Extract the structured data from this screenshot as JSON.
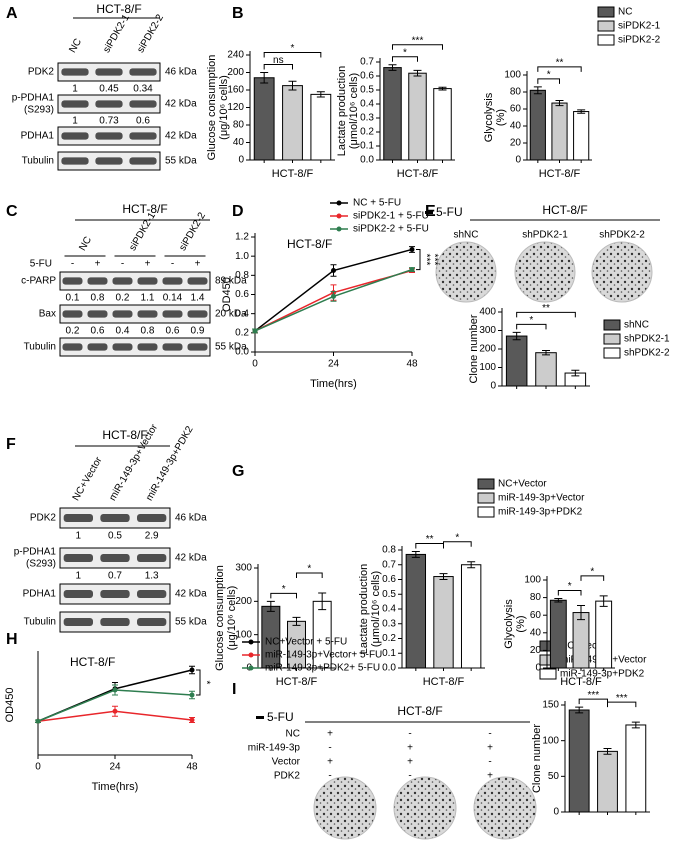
{
  "panel_letters": [
    "A",
    "B",
    "C",
    "D",
    "E",
    "F",
    "G",
    "H",
    "I"
  ],
  "blots": [
    {
      "header": "HCT-8/F",
      "lanes": [
        "NC",
        "siPDK2-1",
        "siPDK2-2"
      ],
      "rows": [
        {
          "label": [
            "PDK2"
          ],
          "kda": "46 kDa",
          "quant": [
            1,
            0.45,
            0.34
          ]
        },
        {
          "label": [
            "p-PDHA1",
            "(S293)"
          ],
          "kda": "42 kDa",
          "quant": [
            1,
            0.73,
            0.6
          ]
        },
        {
          "label": [
            "PDHA1"
          ],
          "kda": "42 kDa"
        },
        {
          "label": [
            "Tubulin"
          ],
          "kda": "55 kDa"
        }
      ]
    },
    {
      "header": "HCT-8/F",
      "groups": [
        "NC",
        "siPDK2-1",
        "siPDK2-2"
      ],
      "treatment": {
        "label": "5-FU",
        "signs": [
          "-",
          "+",
          "-",
          "+",
          "-",
          "+"
        ]
      },
      "rows": [
        {
          "label": [
            "c-PARP"
          ],
          "kda": "89 kDa",
          "quant": [
            0.1,
            0.8,
            0.2,
            1.1,
            0.14,
            1.4
          ]
        },
        {
          "label": [
            "Bax"
          ],
          "kda": "20 kDa",
          "quant": [
            0.2,
            0.6,
            0.4,
            0.8,
            0.6,
            0.9
          ]
        },
        {
          "label": [
            "Tubulin"
          ],
          "kda": "55 kDa"
        }
      ]
    },
    {
      "header": "HCT-8/F",
      "lanes": [
        "NC+Vector",
        "miR-149-3p+Vector",
        "miR-149-3p+PDK2"
      ],
      "rows": [
        {
          "label": [
            "PDK2"
          ],
          "kda": "46 kDa",
          "quant": [
            1,
            0.5,
            2.9
          ]
        },
        {
          "label": [
            "p-PDHA1",
            "(S293)"
          ],
          "kda": "42 kDa",
          "quant": [
            1,
            0.7,
            1.3
          ]
        },
        {
          "label": [
            "PDHA1"
          ],
          "kda": "42 kDa"
        },
        {
          "label": [
            "Tubulin"
          ],
          "kda": "55 kDa"
        }
      ]
    }
  ],
  "dishes_e": {
    "treatment": "5-FU",
    "header": "HCT-8/F",
    "labels": [
      "shNC",
      "shPDK2-1",
      "shPDK2-2"
    ]
  },
  "dishes_i": {
    "treatment": "5-FU",
    "header": "HCT-8/F",
    "rows": [
      {
        "label": "NC",
        "signs": [
          "+",
          "-",
          "-"
        ]
      },
      {
        "label": "miR-149-3p",
        "signs": [
          "-",
          "+",
          "+"
        ]
      },
      {
        "label": "Vector",
        "signs": [
          "+",
          "+",
          "-"
        ]
      },
      {
        "label": "PDK2",
        "signs": [
          "-",
          "-",
          "+"
        ]
      }
    ]
  },
  "legends": [
    [
      {
        "name": "NC",
        "color": "#595959"
      },
      {
        "name": "siPDK2-1",
        "color": "#cccccc"
      },
      {
        "name": "siPDK2-2",
        "color": "#ffffff"
      }
    ],
    [
      {
        "name": "shNC",
        "color": "#595959"
      },
      {
        "name": "shPDK2-1",
        "color": "#cccccc"
      },
      {
        "name": "shPDK2-2",
        "color": "#ffffff"
      }
    ],
    [
      {
        "name": "NC+Vector",
        "color": "#595959"
      },
      {
        "name": "miR-149-3p+Vector",
        "color": "#cccccc"
      },
      {
        "name": "miR-149-3p+PDK2",
        "color": "#ffffff"
      }
    ],
    [
      {
        "name": "NC+Vector",
        "color": "#595959"
      },
      {
        "name": "miR-149-3p+Vector",
        "color": "#cccccc"
      },
      {
        "name": "miR-149-3p+PDK2",
        "color": "#ffffff"
      }
    ]
  ],
  "chart_data": [
    {
      "type": "bar",
      "ylabel": [
        "Glucose consumption",
        "(μg/10⁶ cells)"
      ],
      "xlabel": "HCT-8/F",
      "categories": [
        null,
        null,
        null
      ],
      "values": [
        188,
        170,
        150
      ],
      "errors": [
        12,
        10,
        6
      ],
      "colors": [
        "#595959",
        "#cccccc",
        "#ffffff"
      ],
      "ylim": [
        0,
        240
      ],
      "yticks": [
        0,
        40,
        80,
        120,
        160,
        200,
        240
      ],
      "annotations": [
        {
          "text": "ns",
          "bars": [
            0,
            1
          ]
        },
        {
          "text": "*",
          "bars": [
            0,
            2
          ]
        }
      ]
    },
    {
      "type": "bar",
      "ylabel": [
        "Lactate production",
        "(μmol/10⁶ cells)"
      ],
      "xlabel": "HCT-8/F",
      "categories": [
        null,
        null,
        null
      ],
      "values": [
        0.66,
        0.62,
        0.51
      ],
      "errors": [
        0.02,
        0.02,
        0.01
      ],
      "colors": [
        "#595959",
        "#cccccc",
        "#ffffff"
      ],
      "ylim": [
        0,
        0.7
      ],
      "yticks": [
        {
          "value": 0,
          "label": "0.0"
        },
        0.1,
        0.2,
        0.3,
        0.4,
        0.5,
        0.6,
        0.7
      ],
      "annotations": [
        {
          "text": "*",
          "bars": [
            0,
            1
          ]
        },
        {
          "text": "***",
          "bars": [
            0,
            2
          ]
        }
      ]
    },
    {
      "type": "bar",
      "ylabel": [
        "Glycolysis",
        "(%)"
      ],
      "xlabel": "HCT-8/F",
      "categories": [
        null,
        null,
        null
      ],
      "values": [
        82,
        67,
        57
      ],
      "errors": [
        4,
        3,
        2
      ],
      "colors": [
        "#595959",
        "#cccccc",
        "#ffffff"
      ],
      "ylim": [
        0,
        100
      ],
      "yticks": [
        0,
        20,
        40,
        60,
        80,
        100
      ],
      "annotations": [
        {
          "text": "*",
          "bars": [
            0,
            1
          ]
        },
        {
          "text": "**",
          "bars": [
            0,
            2
          ]
        }
      ]
    },
    {
      "type": "line",
      "inner_title": "HCT-8/F",
      "xlabel": "Time(hrs)",
      "ylabel": [
        "OD450"
      ],
      "x": [
        0,
        24,
        48
      ],
      "xlim": [
        0,
        48
      ],
      "xticks": [
        0,
        24,
        48
      ],
      "ylim": [
        0,
        1.2
      ],
      "yticks": [
        {
          "value": 0,
          "label": "0.0"
        },
        0.2,
        0.4,
        0.6,
        0.8,
        {
          "value": 1,
          "label": "1.0"
        },
        1.2
      ],
      "series": [
        {
          "name": "NC + 5-FU",
          "color": "#000000",
          "values": [
            0.22,
            0.85,
            1.07
          ],
          "errors": [
            0.02,
            0.06,
            0.03
          ]
        },
        {
          "name": "siPDK2-1 + 5-FU",
          "color": "#e8262b",
          "values": [
            0.22,
            0.62,
            0.85
          ],
          "errors": [
            0.02,
            0.08,
            0.02
          ]
        },
        {
          "name": "siPDK2-2 + 5-FU",
          "color": "#2e7d4f",
          "values": [
            0.22,
            0.58,
            0.86
          ],
          "errors": [
            0.02,
            0.05,
            0.02
          ]
        }
      ],
      "annotations": [
        {
          "text": "***"
        },
        {
          "text": "***"
        }
      ]
    },
    {
      "type": "bar",
      "ylabel": [
        "Clone number"
      ],
      "categories": [
        null,
        null,
        null
      ],
      "values": [
        270,
        180,
        70
      ],
      "errors": [
        20,
        12,
        15
      ],
      "colors": [
        "#595959",
        "#cccccc",
        "#ffffff"
      ],
      "ylim": [
        0,
        400
      ],
      "yticks": [
        0,
        100,
        200,
        300,
        400
      ],
      "annotations": [
        {
          "text": "*",
          "bars": [
            0,
            1
          ]
        },
        {
          "text": "**",
          "bars": [
            0,
            2
          ]
        }
      ]
    },
    {
      "type": "bar",
      "ylabel": [
        "Glucose consumption",
        "(μg/10⁶ cells)"
      ],
      "xlabel": "HCT-8/F",
      "categories": [
        null,
        null,
        null
      ],
      "values": [
        185,
        140,
        200
      ],
      "errors": [
        15,
        12,
        25
      ],
      "colors": [
        "#595959",
        "#cccccc",
        "#ffffff"
      ],
      "ylim": [
        0,
        300
      ],
      "yticks": [
        0,
        100,
        200,
        300
      ],
      "annotations": [
        {
          "text": "*",
          "bars": [
            0,
            1
          ]
        },
        {
          "text": "*",
          "bars": [
            1,
            2
          ]
        }
      ]
    },
    {
      "type": "bar",
      "ylabel": [
        "Lactate production",
        "(μmol/10⁶ cells)"
      ],
      "xlabel": "HCT-8/F",
      "categories": [
        null,
        null,
        null
      ],
      "values": [
        0.77,
        0.62,
        0.7
      ],
      "errors": [
        0.02,
        0.02,
        0.02
      ],
      "colors": [
        "#595959",
        "#cccccc",
        "#ffffff"
      ],
      "ylim": [
        0,
        0.8
      ],
      "yticks": [
        {
          "value": 0,
          "label": "0.0"
        },
        0.1,
        0.2,
        0.3,
        0.4,
        0.5,
        0.6,
        0.7,
        0.8
      ],
      "annotations": [
        {
          "text": "**",
          "bars": [
            0,
            1
          ]
        },
        {
          "text": "*",
          "bars": [
            1,
            2
          ]
        }
      ]
    },
    {
      "type": "bar",
      "ylabel": [
        "Glycolysis",
        "(%)"
      ],
      "xlabel": "HCT-8/F",
      "categories": [
        null,
        null,
        null
      ],
      "values": [
        77,
        63,
        76
      ],
      "errors": [
        2,
        8,
        6
      ],
      "colors": [
        "#595959",
        "#cccccc",
        "#ffffff"
      ],
      "ylim": [
        0,
        100
      ],
      "yticks": [
        0,
        20,
        40,
        60,
        80,
        100
      ],
      "annotations": [
        {
          "text": "*",
          "bars": [
            0,
            1
          ]
        },
        {
          "text": "*",
          "bars": [
            1,
            2
          ]
        }
      ]
    },
    {
      "type": "line",
      "inner_title": "HCT-8/F",
      "xlabel": "Time(hrs)",
      "ylabel": [
        "OD450"
      ],
      "x": [
        0,
        24,
        48
      ],
      "xlim": [
        0,
        48
      ],
      "xticks": [
        0,
        24,
        48
      ],
      "ylim": [
        0.2,
        1.0
      ],
      "series": [
        {
          "name": "NC+Vector + 5-FU",
          "color": "#000000",
          "values": [
            0.47,
            0.73,
            0.88
          ],
          "errors": [
            0.01,
            0.05,
            0.03
          ]
        },
        {
          "name": "miR-149-3p+Vector+ 5-FU",
          "color": "#e8262b",
          "values": [
            0.47,
            0.55,
            0.48
          ],
          "errors": [
            0.01,
            0.04,
            0.02
          ]
        },
        {
          "name": "miR-149-3p+PDK2+ 5-FU",
          "color": "#2e7d4f",
          "values": [
            0.47,
            0.72,
            0.68
          ],
          "errors": [
            0.01,
            0.04,
            0.03
          ]
        }
      ],
      "annotations": [
        {
          "text": "*"
        }
      ]
    },
    {
      "type": "bar",
      "ylabel": [
        "Clone number"
      ],
      "categories": [
        null,
        null,
        null
      ],
      "values": [
        143,
        85,
        122
      ],
      "errors": [
        4,
        4,
        4
      ],
      "colors": [
        "#595959",
        "#cccccc",
        "#ffffff"
      ],
      "ylim": [
        0,
        150
      ],
      "yticks": [
        0,
        50,
        100,
        150
      ],
      "annotations": [
        {
          "text": "***",
          "bars": [
            0,
            1
          ]
        },
        {
          "text": "***",
          "bars": [
            1,
            2
          ]
        }
      ]
    }
  ]
}
